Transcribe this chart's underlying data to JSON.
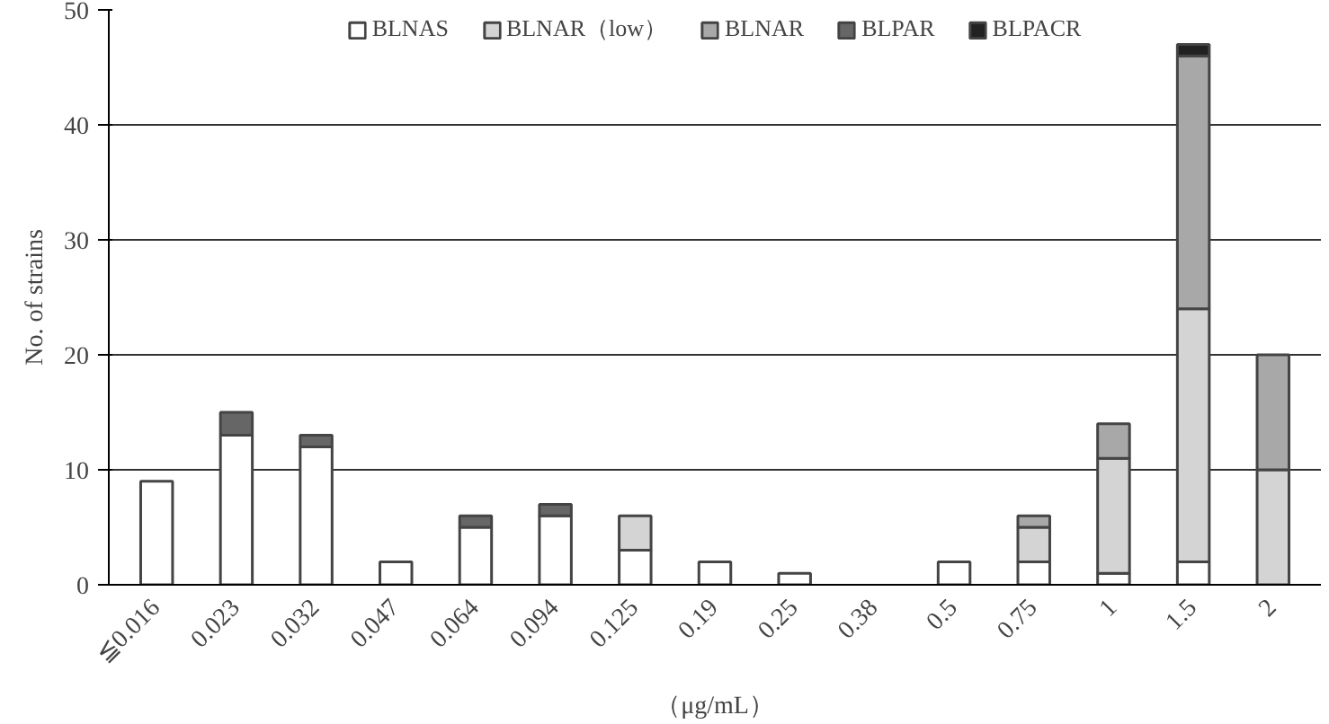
{
  "chart_data": {
    "type": "bar",
    "stacked": true,
    "xlabel": "（μg/mL）",
    "ylabel": "No. of strains",
    "categories": [
      "≦0.016",
      "0.023",
      "0.032",
      "0.047",
      "0.064",
      "0.094",
      "0.125",
      "0.19",
      "0.25",
      "0.38",
      "0.5",
      "0.75",
      "1",
      "1.5",
      "2"
    ],
    "series": [
      {
        "name": "BLNAS",
        "color": "#ffffff",
        "values": [
          9,
          13,
          12,
          2,
          5,
          6,
          3,
          2,
          1,
          0,
          2,
          2,
          1,
          2,
          0
        ]
      },
      {
        "name": "BLNAR（low）",
        "color": "#d4d4d4",
        "values": [
          0,
          0,
          0,
          0,
          0,
          0,
          3,
          0,
          0,
          0,
          0,
          3,
          10,
          22,
          10
        ]
      },
      {
        "name": "BLNAR",
        "color": "#a8a8a8",
        "values": [
          0,
          0,
          0,
          0,
          0,
          0,
          0,
          0,
          0,
          0,
          0,
          1,
          3,
          22,
          10
        ]
      },
      {
        "name": "BLPAR",
        "color": "#666666",
        "values": [
          0,
          2,
          1,
          0,
          1,
          1,
          0,
          0,
          0,
          0,
          0,
          0,
          0,
          0,
          0
        ]
      },
      {
        "name": "BLPACR",
        "color": "#222222",
        "values": [
          0,
          0,
          0,
          0,
          0,
          0,
          0,
          0,
          0,
          0,
          0,
          0,
          0,
          1,
          0
        ]
      }
    ],
    "ylim": [
      0,
      50
    ],
    "yticks": [
      0,
      10,
      20,
      30,
      40,
      50
    ],
    "grid": "y",
    "legend": "top"
  }
}
